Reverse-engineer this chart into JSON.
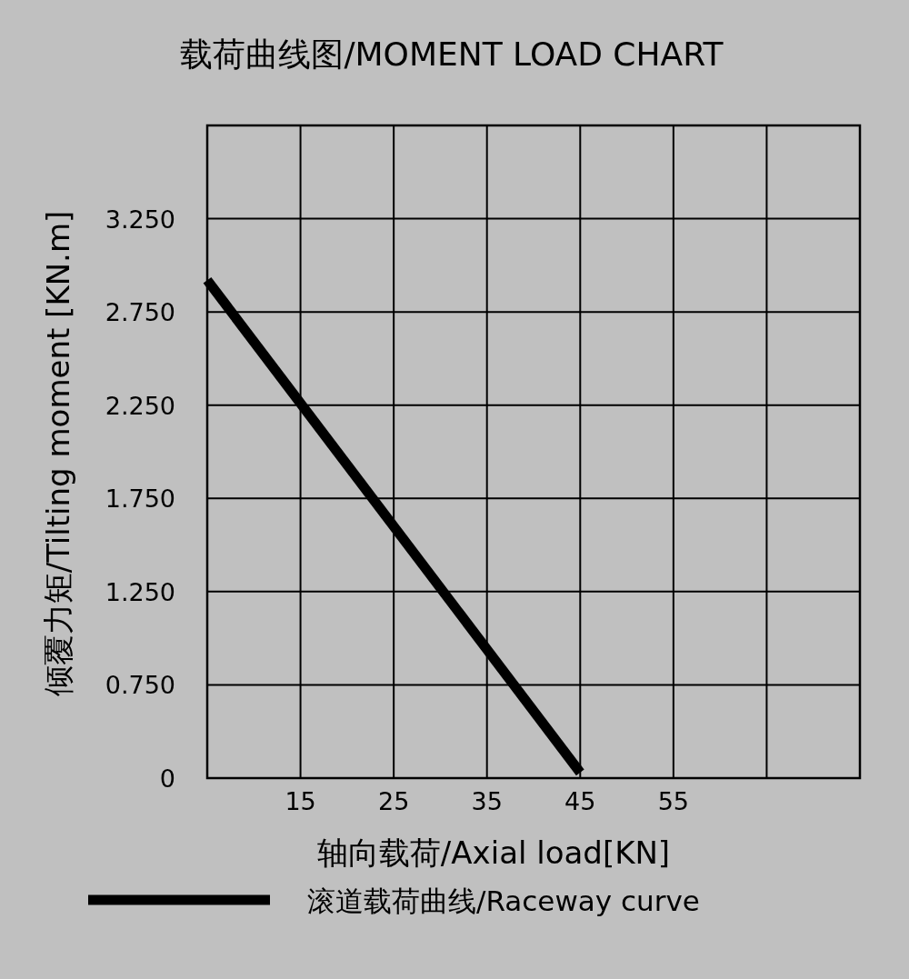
{
  "chart_data": {
    "type": "line",
    "title": "载荷曲线图/MOMENT LOAD CHART",
    "xlabel": "轴向载荷/Axial load[KN]",
    "ylabel": "倾覆力矩/Tilting moment [KN.m]",
    "x": [
      5,
      45
    ],
    "series": [
      {
        "name": "滚道载荷曲线/Raceway curve",
        "color": "#000000",
        "values": [
          2.92,
          0.28
        ]
      }
    ],
    "xlim": [
      5,
      75
    ],
    "xticks": [
      {
        "value": 5,
        "label": null
      },
      15,
      25,
      35,
      45,
      55,
      {
        "value": 65,
        "label": null
      },
      {
        "value": 75,
        "label": null
      }
    ],
    "ylim": [
      0.25,
      3.75
    ],
    "yticks": [
      {
        "value": 0.25,
        "label": "0"
      },
      {
        "value": 0.75,
        "label": "0.750"
      },
      {
        "value": 1.25,
        "label": "1.250"
      },
      {
        "value": 1.75,
        "label": "1.750"
      },
      {
        "value": 2.25,
        "label": "2.250"
      },
      {
        "value": 2.75,
        "label": "2.750"
      },
      {
        "value": 3.25,
        "label": "3.250"
      },
      {
        "value": 3.75,
        "label": null
      }
    ],
    "grid": true,
    "legend": "bottom",
    "line_style": "solid"
  }
}
